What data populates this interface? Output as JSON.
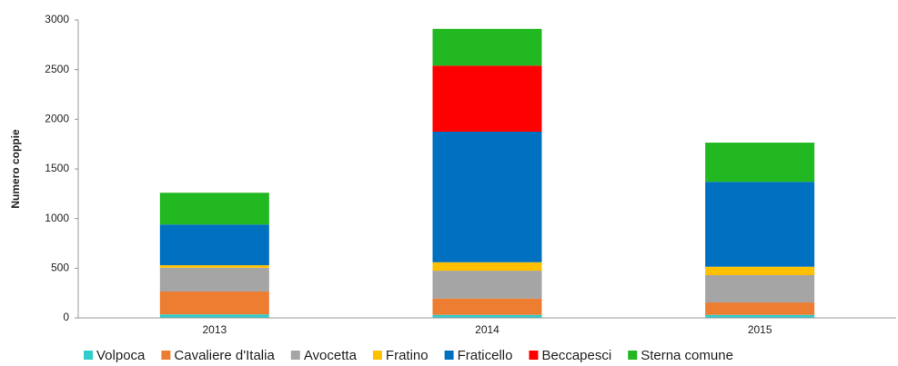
{
  "chart_data": {
    "type": "stacked_bar",
    "y_label": "Numero coppie",
    "categories": [
      "2013",
      "2014",
      "2015"
    ],
    "series": [
      {
        "name": "Volpoca",
        "color": "#33cccc",
        "values": [
          35,
          30,
          30
        ]
      },
      {
        "name": "Cavaliere d'Italia",
        "color": "#ed7d31",
        "values": [
          230,
          165,
          125
        ]
      },
      {
        "name": "Avocetta",
        "color": "#a5a5a5",
        "values": [
          240,
          280,
          275
        ]
      },
      {
        "name": "Fratino",
        "color": "#ffc000",
        "values": [
          25,
          85,
          85
        ]
      },
      {
        "name": "Fraticello",
        "color": "#0070c0",
        "values": [
          410,
          1315,
          855
        ]
      },
      {
        "name": "Beccapesci",
        "color": "#ff0000",
        "values": [
          0,
          665,
          0
        ]
      },
      {
        "name": "Sterna comune",
        "color": "#22b822",
        "values": [
          320,
          370,
          395
        ]
      }
    ],
    "ylim": [
      0,
      3000
    ],
    "yticks": [
      0,
      500,
      1000,
      1500,
      2000,
      2500,
      3000
    ],
    "grid": false
  }
}
